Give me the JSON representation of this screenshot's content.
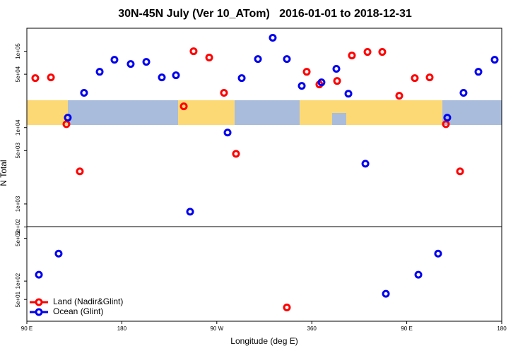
{
  "chart_data": [
    {
      "type": "scatter",
      "title": "30N-45N July (Ver 10_ATom)   2016-01-01 to 2018-12-31",
      "y_label": "N Total",
      "log_y": true,
      "xlim": [
        90,
        540
      ],
      "ylim": [
        505,
        200000
      ],
      "yticks": [
        {
          "value": 500,
          "label": "5e+02"
        },
        {
          "value": 1000,
          "label": "1e+03"
        },
        {
          "value": 5000,
          "label": "5e+03"
        },
        {
          "value": 10000,
          "label": "1e+04"
        },
        {
          "value": 50000,
          "label": "5e+04"
        },
        {
          "value": 100000,
          "label": "1e+05"
        }
      ],
      "series": [
        {
          "color": "#ff0000",
          "x": [
            98.0,
            112.8,
            127.5,
            140.2,
            238.7,
            248.0,
            262.8,
            276.8,
            288.2,
            355.2,
            367.2,
            384.0,
            398.0,
            412.8,
            426.8,
            442.9,
            457.6,
            471.7,
            487.1,
            500.5
          ],
          "values": [
            44500,
            45400,
            11100,
            2670,
            19000,
            100000,
            82600,
            28500,
            4540,
            53800,
            36700,
            40800,
            88000,
            97900,
            97900,
            26100,
            44500,
            45400,
            11100,
            2670
          ]
        },
        {
          "color": "#0000ee",
          "x": [
            128.8,
            144.2,
            159.0,
            173.0,
            188.4,
            203.2,
            217.9,
            231.3,
            244.7,
            280.2,
            293.6,
            309.0,
            323.0,
            336.4,
            350.5,
            369.2,
            383.3,
            394.7,
            410.8,
            488.4,
            503.8,
            517.9,
            533.3
          ],
          "values": [
            13500,
            28500,
            53800,
            77400,
            68100,
            72600,
            45400,
            48400,
            791,
            8610,
            44500,
            79100,
            150000,
            79100,
            35200,
            39100,
            58800,
            27800,
            3370,
            13500,
            28500,
            53800,
            77400
          ]
        }
      ]
    },
    {
      "type": "scatter",
      "x_label": "Longitude (deg E)",
      "log_y": true,
      "legend": "lower left",
      "xlim": [
        90,
        540
      ],
      "xticks": [
        {
          "value": 90,
          "label": "90 E"
        },
        180,
        {
          "value": 270,
          "label": "90 W"
        },
        360,
        {
          "value": 450,
          "label": "90 E"
        },
        {
          "value": 540,
          "label": "180"
        }
      ],
      "ylim": [
        22,
        780
      ],
      "yticks": [
        {
          "value": 50,
          "label": "5e+01"
        },
        {
          "value": 100,
          "label": "1e+02"
        },
        {
          "value": 500,
          "label": "5e+02"
        }
      ],
      "series": [
        {
          "name": "Land (Nadir&Glint)",
          "color": "#ff0000",
          "x": [
            336.4
          ],
          "values": [
            37
          ]
        },
        {
          "name": "Ocean (Glint)",
          "color": "#0000ee",
          "x": [
            101.4,
            120.1,
            430.2,
            461.0,
            479.7
          ],
          "values": [
            127,
            282,
            62,
            127,
            282
          ]
        }
      ]
    }
  ]
}
